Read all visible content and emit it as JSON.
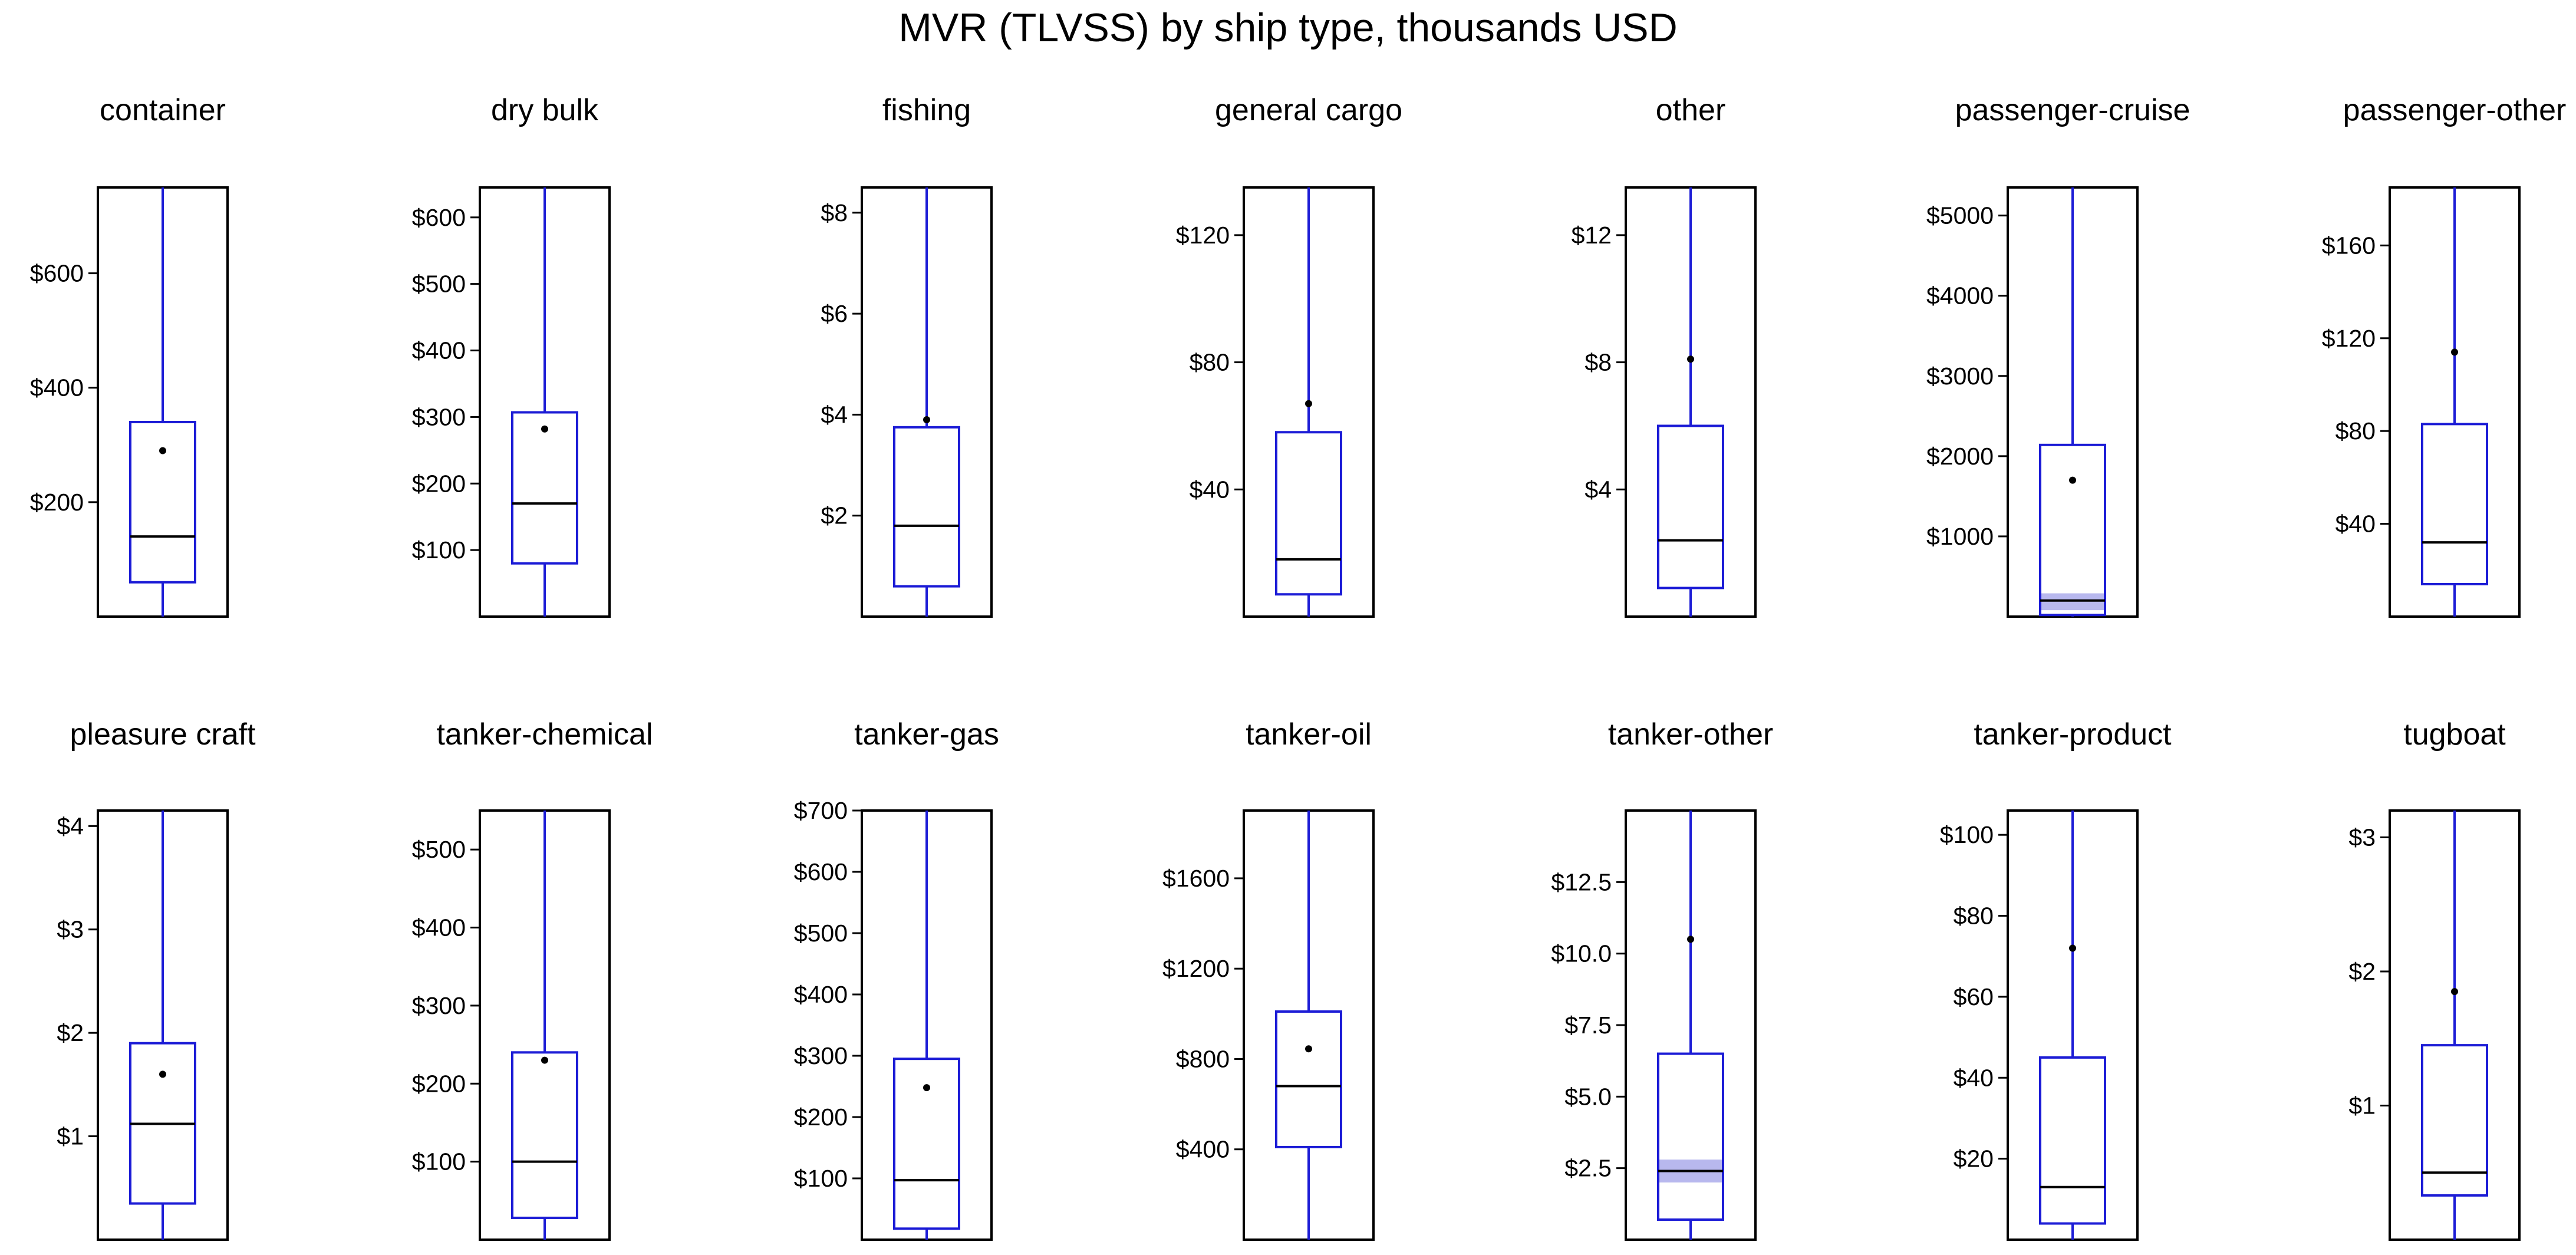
{
  "chart_data": {
    "type": "boxplot",
    "title": "MVR (TLVSS) by ship type, thousands USD",
    "layout": {
      "rows": 2,
      "cols": 7
    },
    "colors": {
      "box": "#1c1cd6",
      "median": "#000000",
      "frame": "#000000",
      "mean": "#000000",
      "ci_band": "#b8b8ee"
    },
    "panels": [
      {
        "name": "container",
        "ylim": [
          0,
          750
        ],
        "ticks": [
          200,
          400,
          600
        ],
        "tick_labels": [
          "$200",
          "$400",
          "$600"
        ],
        "min": 0,
        "q1": 60,
        "median": 140,
        "q3": 340,
        "max": 750,
        "mean": 290
      },
      {
        "name": "dry bulk",
        "ylim": [
          0,
          645
        ],
        "ticks": [
          100,
          200,
          300,
          400,
          500,
          600
        ],
        "tick_labels": [
          "$100",
          "$200",
          "$300",
          "$400",
          "$500",
          "$600"
        ],
        "min": 0,
        "q1": 80,
        "median": 170,
        "q3": 307,
        "max": 645,
        "mean": 282
      },
      {
        "name": "fishing",
        "ylim": [
          0,
          8.5
        ],
        "ticks": [
          2,
          4,
          6,
          8
        ],
        "tick_labels": [
          "$2",
          "$4",
          "$6",
          "$8"
        ],
        "min": 0,
        "q1": 0.6,
        "median": 1.8,
        "q3": 3.75,
        "max": 8.5,
        "mean": 3.9
      },
      {
        "name": "general cargo",
        "ylim": [
          0,
          135
        ],
        "ticks": [
          40,
          80,
          120
        ],
        "tick_labels": [
          "$40",
          "$80",
          "$120"
        ],
        "min": 0,
        "q1": 7,
        "median": 18,
        "q3": 58,
        "max": 135,
        "mean": 67
      },
      {
        "name": "other",
        "ylim": [
          0,
          13.5
        ],
        "ticks": [
          4,
          8,
          12
        ],
        "tick_labels": [
          "$4",
          "$8",
          "$12"
        ],
        "min": 0,
        "q1": 0.9,
        "median": 2.4,
        "q3": 6,
        "max": 13.5,
        "mean": 8.1
      },
      {
        "name": "passenger-cruise",
        "ylim": [
          0,
          5350
        ],
        "ticks": [
          1000,
          2000,
          3000,
          4000,
          5000
        ],
        "tick_labels": [
          "$1000",
          "$2000",
          "$3000",
          "$4000",
          "$5000"
        ],
        "min": 0,
        "q1": 20,
        "median": 200,
        "q3": 2140,
        "max": 5350,
        "mean": 1700,
        "ci": [
          80,
          290
        ]
      },
      {
        "name": "passenger-other",
        "ylim": [
          0,
          185
        ],
        "ticks": [
          40,
          80,
          120,
          160
        ],
        "tick_labels": [
          "$40",
          "$80",
          "$120",
          "$160"
        ],
        "min": 0,
        "q1": 14,
        "median": 32,
        "q3": 83,
        "max": 185,
        "mean": 114
      },
      {
        "name": "pleasure craft",
        "ylim": [
          0,
          4.15
        ],
        "ticks": [
          1,
          2,
          3,
          4
        ],
        "tick_labels": [
          "$1",
          "$2",
          "$3",
          "$4"
        ],
        "min": 0,
        "q1": 0.35,
        "median": 1.12,
        "q3": 1.9,
        "max": 4.15,
        "mean": 1.6
      },
      {
        "name": "tanker-chemical",
        "ylim": [
          0,
          550
        ],
        "ticks": [
          100,
          200,
          300,
          400,
          500
        ],
        "tick_labels": [
          "$100",
          "$200",
          "$300",
          "$400",
          "$500"
        ],
        "min": 0,
        "q1": 28,
        "median": 100,
        "q3": 240,
        "max": 550,
        "mean": 230
      },
      {
        "name": "tanker-gas",
        "ylim": [
          0,
          700
        ],
        "ticks": [
          100,
          200,
          300,
          400,
          500,
          600,
          700
        ],
        "tick_labels": [
          "$100",
          "$200",
          "$300",
          "$400",
          "$500",
          "$600",
          "$700"
        ],
        "min": 0,
        "q1": 18,
        "median": 97,
        "q3": 295,
        "max": 700,
        "mean": 248
      },
      {
        "name": "tanker-oil",
        "ylim": [
          0,
          1900
        ],
        "ticks": [
          400,
          800,
          1200,
          1600
        ],
        "tick_labels": [
          "$400",
          "$800",
          "$1200",
          "$1600"
        ],
        "min": 0,
        "q1": 410,
        "median": 680,
        "q3": 1010,
        "max": 1900,
        "mean": 845
      },
      {
        "name": "tanker-other",
        "ylim": [
          0,
          15
        ],
        "ticks": [
          2.5,
          5.0,
          7.5,
          10.0,
          12.5
        ],
        "tick_labels": [
          "$2.5",
          "$5.0",
          "$7.5",
          "$10.0",
          "$12.5"
        ],
        "min": 0,
        "q1": 0.7,
        "median": 2.4,
        "q3": 6.5,
        "max": 15,
        "mean": 10.5,
        "ci": [
          2.0,
          2.8
        ]
      },
      {
        "name": "tanker-product",
        "ylim": [
          0,
          106
        ],
        "ticks": [
          20,
          40,
          60,
          80,
          100
        ],
        "tick_labels": [
          "$20",
          "$40",
          "$60",
          "$80",
          "$100"
        ],
        "min": 0,
        "q1": 4,
        "median": 13,
        "q3": 45,
        "max": 106,
        "mean": 72
      },
      {
        "name": "tugboat",
        "ylim": [
          0,
          3.2
        ],
        "ticks": [
          1,
          2,
          3
        ],
        "tick_labels": [
          "$1",
          "$2",
          "$3"
        ],
        "min": 0,
        "q1": 0.33,
        "median": 0.5,
        "q3": 1.45,
        "max": 3.2,
        "mean": 1.85
      }
    ]
  }
}
